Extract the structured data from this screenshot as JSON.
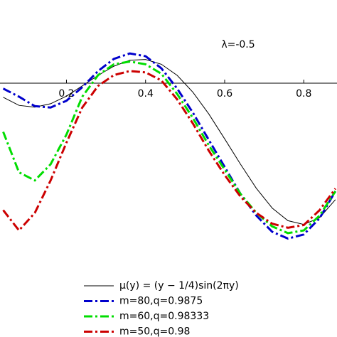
{
  "chart_data": {
    "type": "line",
    "annotation": "λ=-0.5",
    "x": [
      0.04,
      0.08,
      0.12,
      0.16,
      0.2,
      0.24,
      0.28,
      0.32,
      0.36,
      0.4,
      0.44,
      0.48,
      0.52,
      0.56,
      0.6,
      0.64,
      0.68,
      0.72,
      0.76,
      0.8,
      0.84,
      0.88
    ],
    "series": [
      {
        "name": "μ(y) = (y − 1/4)sin(2πy)",
        "color": "#000000",
        "style": "solid",
        "values": [
          -0.052,
          -0.082,
          -0.089,
          -0.076,
          -0.048,
          -0.01,
          0.029,
          0.063,
          0.085,
          0.088,
          0.07,
          0.029,
          -0.034,
          -0.114,
          -0.206,
          -0.3,
          -0.389,
          -0.462,
          -0.509,
          -0.523,
          -0.498,
          -0.431
        ]
      },
      {
        "name": "m=80,q=0.9875",
        "color": "#0000cc",
        "style": "dashdot",
        "values": [
          -0.02,
          -0.05,
          -0.085,
          -0.09,
          -0.065,
          -0.015,
          0.045,
          0.09,
          0.11,
          0.1,
          0.055,
          -0.02,
          -0.11,
          -0.21,
          -0.31,
          -0.41,
          -0.49,
          -0.55,
          -0.575,
          -0.56,
          -0.5,
          -0.4
        ]
      },
      {
        "name": "m=60,q=0.98333",
        "color": "#00dd00",
        "style": "dashdot",
        "values": [
          -0.18,
          -0.33,
          -0.36,
          -0.3,
          -0.19,
          -0.05,
          0.03,
          0.07,
          0.08,
          0.07,
          0.035,
          -0.04,
          -0.13,
          -0.23,
          -0.32,
          -0.41,
          -0.48,
          -0.53,
          -0.555,
          -0.545,
          -0.49,
          -0.4
        ]
      },
      {
        "name": "m=50,q=0.98",
        "color": "#cc0000",
        "style": "dashdot",
        "values": [
          -0.47,
          -0.545,
          -0.48,
          -0.36,
          -0.22,
          -0.09,
          -0.01,
          0.03,
          0.045,
          0.04,
          0.01,
          -0.06,
          -0.15,
          -0.25,
          -0.34,
          -0.42,
          -0.48,
          -0.52,
          -0.535,
          -0.525,
          -0.47,
          -0.39
        ]
      }
    ],
    "xlim": [
      0.032,
      0.884
    ],
    "ylim": [
      -0.7,
      0.3
    ],
    "xticks": [
      0.2,
      0.4,
      0.6,
      0.8
    ],
    "legend": "lower left"
  }
}
